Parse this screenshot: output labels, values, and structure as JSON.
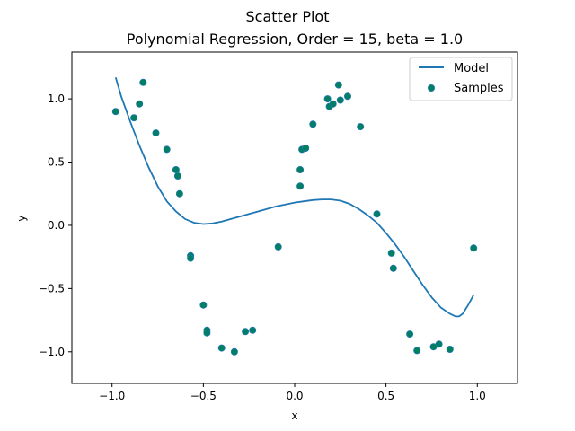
{
  "chart_data": {
    "type": "scatter",
    "suptitle": "Scatter Plot",
    "title": "Polynomial Regression, Order = 15, beta = 1.0",
    "xlabel": "x",
    "ylabel": "y",
    "xlim": [
      -1.22,
      1.22
    ],
    "ylim": [
      -1.25,
      1.37
    ],
    "xticks": [
      -1.0,
      -0.5,
      0.0,
      0.5,
      1.0
    ],
    "xtick_labels": [
      "−1.0",
      "−0.5",
      "0.0",
      "0.5",
      "1.0"
    ],
    "yticks": [
      -1.0,
      -0.5,
      0.0,
      0.5,
      1.0
    ],
    "ytick_labels": [
      "−1.0",
      "−0.5",
      "0.0",
      "0.5",
      "1.0"
    ],
    "grid": false,
    "legend_position": "top-right",
    "series": [
      {
        "name": "Model",
        "kind": "line",
        "color": "#1f77b4",
        "x": [
          -0.98,
          -0.95,
          -0.9,
          -0.85,
          -0.8,
          -0.75,
          -0.7,
          -0.65,
          -0.6,
          -0.55,
          -0.5,
          -0.45,
          -0.4,
          -0.35,
          -0.3,
          -0.25,
          -0.2,
          -0.15,
          -0.1,
          -0.05,
          0.0,
          0.05,
          0.1,
          0.15,
          0.2,
          0.25,
          0.3,
          0.35,
          0.4,
          0.45,
          0.5,
          0.55,
          0.6,
          0.65,
          0.7,
          0.75,
          0.8,
          0.85,
          0.88,
          0.9,
          0.92,
          0.95,
          0.98
        ],
        "y": [
          1.17,
          1.02,
          0.82,
          0.63,
          0.46,
          0.31,
          0.19,
          0.11,
          0.05,
          0.02,
          0.01,
          0.015,
          0.03,
          0.05,
          0.07,
          0.09,
          0.11,
          0.13,
          0.15,
          0.165,
          0.18,
          0.19,
          0.2,
          0.205,
          0.205,
          0.195,
          0.17,
          0.13,
          0.08,
          0.02,
          -0.06,
          -0.15,
          -0.25,
          -0.36,
          -0.47,
          -0.57,
          -0.65,
          -0.7,
          -0.72,
          -0.72,
          -0.7,
          -0.63,
          -0.55
        ]
      },
      {
        "name": "Samples",
        "kind": "scatter",
        "color": "#008060",
        "edge_color": "#1f77b4",
        "x": [
          -0.98,
          -0.88,
          -0.85,
          -0.83,
          -0.76,
          -0.7,
          -0.65,
          -0.64,
          -0.63,
          -0.57,
          -0.57,
          -0.5,
          -0.48,
          -0.48,
          -0.4,
          -0.33,
          -0.27,
          -0.23,
          -0.09,
          0.03,
          0.03,
          0.04,
          0.06,
          0.1,
          0.18,
          0.19,
          0.21,
          0.24,
          0.25,
          0.29,
          0.36,
          0.45,
          0.53,
          0.54,
          0.63,
          0.67,
          0.76,
          0.79,
          0.85,
          0.98
        ],
        "y": [
          0.9,
          0.85,
          0.96,
          1.13,
          0.73,
          0.6,
          0.44,
          0.39,
          0.25,
          -0.24,
          -0.26,
          -0.63,
          -0.83,
          -0.85,
          -0.97,
          -1.0,
          -0.84,
          -0.83,
          -0.17,
          0.44,
          0.31,
          0.6,
          0.61,
          0.8,
          1.0,
          0.94,
          0.96,
          1.11,
          0.99,
          1.02,
          0.78,
          0.09,
          -0.22,
          -0.34,
          -0.86,
          -0.99,
          -0.96,
          -0.94,
          -0.98,
          -0.18
        ]
      }
    ]
  }
}
